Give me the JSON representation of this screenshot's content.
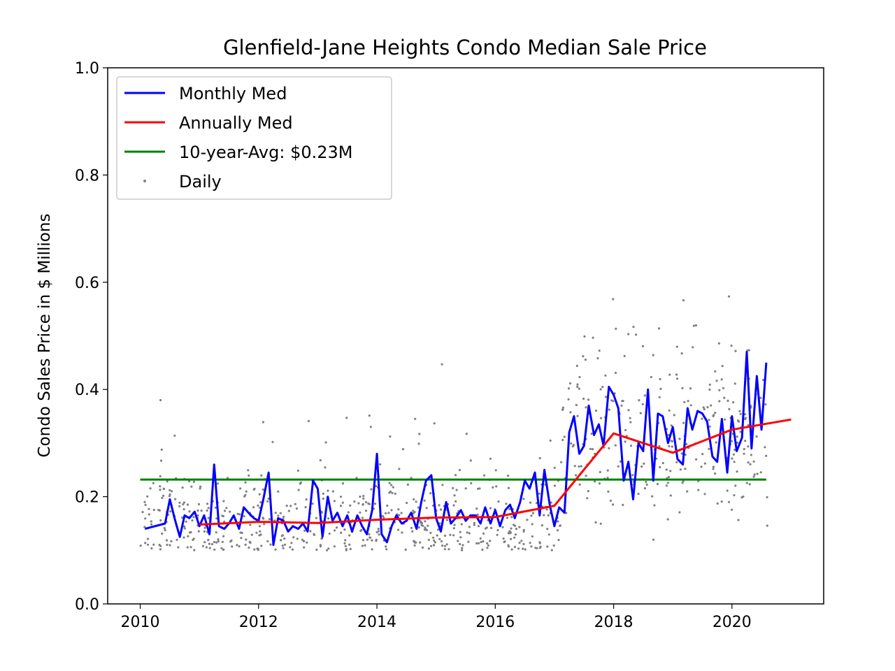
{
  "chart_data": {
    "type": "line",
    "title": "Glenfield-Jane Heights Condo Median Sale Price",
    "xlabel": "",
    "ylabel": "Condo Sales Price in $ Millions",
    "xlim": [
      2009.45,
      2021.55
    ],
    "ylim": [
      0.0,
      1.0
    ],
    "xticks": [
      "2010",
      "2012",
      "2014",
      "2016",
      "2018",
      "2020"
    ],
    "yticks": [
      "0.0",
      "0.2",
      "0.4",
      "0.6",
      "0.8",
      "1.0"
    ],
    "grid": false,
    "legend_position": "upper-left",
    "legend": [
      "Monthly Med",
      "Annually Med",
      "10-year-Avg: $0.23M",
      "Daily"
    ],
    "series": [
      {
        "name": "Monthly Med",
        "color": "#0000ff",
        "x": [
          2010.08,
          2010.42,
          2010.5,
          2010.58,
          2010.67,
          2010.75,
          2010.83,
          2010.92,
          2011.0,
          2011.08,
          2011.17,
          2011.25,
          2011.33,
          2011.42,
          2011.5,
          2011.58,
          2011.67,
          2011.75,
          2011.83,
          2011.92,
          2012.0,
          2012.08,
          2012.17,
          2012.25,
          2012.33,
          2012.42,
          2012.5,
          2012.58,
          2012.67,
          2012.75,
          2012.83,
          2012.92,
          2013.0,
          2013.08,
          2013.17,
          2013.25,
          2013.33,
          2013.42,
          2013.5,
          2013.58,
          2013.67,
          2013.75,
          2013.83,
          2013.92,
          2014.0,
          2014.08,
          2014.17,
          2014.25,
          2014.33,
          2014.42,
          2014.5,
          2014.58,
          2014.67,
          2014.75,
          2014.83,
          2014.92,
          2015.0,
          2015.08,
          2015.17,
          2015.25,
          2015.33,
          2015.42,
          2015.5,
          2015.58,
          2015.67,
          2015.75,
          2015.83,
          2015.92,
          2016.0,
          2016.08,
          2016.17,
          2016.25,
          2016.33,
          2016.42,
          2016.5,
          2016.58,
          2016.67,
          2016.75,
          2016.83,
          2016.92,
          2017.0,
          2017.08,
          2017.17,
          2017.25,
          2017.33,
          2017.42,
          2017.5,
          2017.58,
          2017.67,
          2017.75,
          2017.83,
          2017.92,
          2018.0,
          2018.08,
          2018.17,
          2018.25,
          2018.33,
          2018.42,
          2018.5,
          2018.58,
          2018.67,
          2018.75,
          2018.83,
          2018.92,
          2019.0,
          2019.08,
          2019.17,
          2019.25,
          2019.33,
          2019.42,
          2019.5,
          2019.58,
          2019.67,
          2019.75,
          2019.83,
          2019.92,
          2020.0,
          2020.08,
          2020.17,
          2020.25,
          2020.33,
          2020.42,
          2020.5,
          2020.58
        ],
        "y": [
          0.14,
          0.15,
          0.195,
          0.16,
          0.125,
          0.165,
          0.16,
          0.172,
          0.145,
          0.165,
          0.13,
          0.26,
          0.145,
          0.14,
          0.15,
          0.165,
          0.14,
          0.18,
          0.17,
          0.16,
          0.155,
          0.195,
          0.245,
          0.11,
          0.16,
          0.155,
          0.135,
          0.145,
          0.14,
          0.15,
          0.135,
          0.23,
          0.215,
          0.125,
          0.2,
          0.155,
          0.17,
          0.145,
          0.165,
          0.135,
          0.165,
          0.145,
          0.13,
          0.175,
          0.28,
          0.13,
          0.115,
          0.145,
          0.165,
          0.15,
          0.155,
          0.17,
          0.14,
          0.19,
          0.23,
          0.24,
          0.16,
          0.135,
          0.19,
          0.15,
          0.16,
          0.175,
          0.155,
          0.165,
          0.165,
          0.15,
          0.18,
          0.15,
          0.175,
          0.145,
          0.175,
          0.185,
          0.16,
          0.19,
          0.23,
          0.215,
          0.245,
          0.165,
          0.25,
          0.185,
          0.145,
          0.18,
          0.17,
          0.32,
          0.35,
          0.28,
          0.295,
          0.37,
          0.315,
          0.335,
          0.295,
          0.405,
          0.39,
          0.365,
          0.23,
          0.265,
          0.195,
          0.3,
          0.285,
          0.4,
          0.23,
          0.355,
          0.35,
          0.3,
          0.33,
          0.27,
          0.26,
          0.365,
          0.325,
          0.36,
          0.355,
          0.34,
          0.275,
          0.265,
          0.345,
          0.245,
          0.35,
          0.285,
          0.31,
          0.47,
          0.29,
          0.425,
          0.325,
          0.45
        ]
      },
      {
        "name": "Annually Med",
        "color": "#ff0000",
        "x": [
          2011,
          2012,
          2013,
          2014,
          2015,
          2016,
          2017,
          2018,
          2019,
          2020,
          2021
        ],
        "y": [
          0.148,
          0.153,
          0.151,
          0.157,
          0.161,
          0.162,
          0.183,
          0.318,
          0.282,
          0.325,
          0.344
        ]
      },
      {
        "name": "10-year-Avg: $0.23M",
        "color": "#008000",
        "x": [
          2010,
          2020.58
        ],
        "y": [
          0.232,
          0.232
        ]
      }
    ],
    "scatter": {
      "name": "Daily",
      "color": "#808080",
      "note_count": 900
    }
  }
}
